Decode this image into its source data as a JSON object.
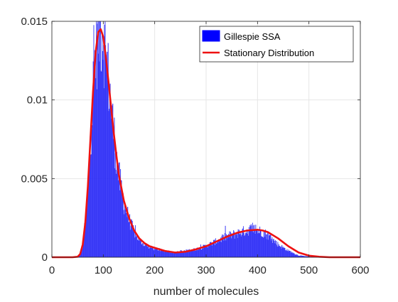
{
  "chart_data": {
    "type": "bar",
    "xlabel": "number of molecules",
    "ylabel": "",
    "title": "",
    "xlim": [
      0,
      600
    ],
    "ylim": [
      0,
      0.015
    ],
    "xticks": [
      0,
      100,
      200,
      300,
      400,
      500,
      600
    ],
    "xtick_labels": [
      "0",
      "100",
      "200",
      "300",
      "400",
      "500",
      "600"
    ],
    "yticks": [
      0,
      0.005,
      0.01,
      0.015
    ],
    "ytick_labels": [
      "0",
      "0.005",
      "0.01",
      "0.015"
    ],
    "grid": true,
    "legend_position": "top-right",
    "series": [
      {
        "name": "Gillespie SSA",
        "kind": "histogram",
        "color": "#0000ff",
        "bin_width": 1,
        "x": [
          50,
          55,
          60,
          65,
          70,
          75,
          80,
          85,
          90,
          95,
          100,
          105,
          110,
          115,
          120,
          125,
          130,
          140,
          150,
          160,
          170,
          180,
          200,
          220,
          240,
          260,
          280,
          300,
          320,
          340,
          360,
          380,
          390,
          400,
          410,
          420,
          440,
          460,
          480,
          500,
          520
        ],
        "values": [
          3e-05,
          0.0002,
          0.0008,
          0.0022,
          0.0045,
          0.0075,
          0.0105,
          0.013,
          0.0143,
          0.0146,
          0.0142,
          0.0128,
          0.0113,
          0.0097,
          0.008,
          0.0065,
          0.0052,
          0.0035,
          0.0024,
          0.0016,
          0.0011,
          0.0008,
          0.0005,
          0.0004,
          0.0003,
          0.0004,
          0.0005,
          0.0007,
          0.001,
          0.0013,
          0.0015,
          0.0017,
          0.0018,
          0.0017,
          0.0016,
          0.0014,
          0.0008,
          0.0004,
          0.0001,
          3e-05,
          0.0
        ]
      },
      {
        "name": "Stationary Distribution",
        "kind": "line",
        "color": "#ee1111",
        "x": [
          0,
          40,
          50,
          55,
          60,
          65,
          70,
          75,
          80,
          85,
          90,
          95,
          100,
          105,
          110,
          115,
          120,
          125,
          130,
          140,
          150,
          160,
          170,
          180,
          190,
          200,
          220,
          240,
          260,
          280,
          300,
          320,
          340,
          360,
          380,
          400,
          410,
          420,
          440,
          460,
          480,
          500,
          520,
          540,
          600
        ],
        "values": [
          0,
          0,
          3e-05,
          0.0002,
          0.0008,
          0.0022,
          0.0045,
          0.0075,
          0.0105,
          0.013,
          0.0143,
          0.0145,
          0.014,
          0.0127,
          0.0112,
          0.0096,
          0.008,
          0.0066,
          0.0053,
          0.0036,
          0.0025,
          0.0017,
          0.0012,
          0.0009,
          0.0007,
          0.0006,
          0.0004,
          0.0003,
          0.00035,
          0.0005,
          0.0007,
          0.001,
          0.0013,
          0.00155,
          0.0017,
          0.00175,
          0.0017,
          0.0016,
          0.0012,
          0.0007,
          0.0003,
          0.0001,
          3e-05,
          0,
          0
        ]
      }
    ]
  }
}
